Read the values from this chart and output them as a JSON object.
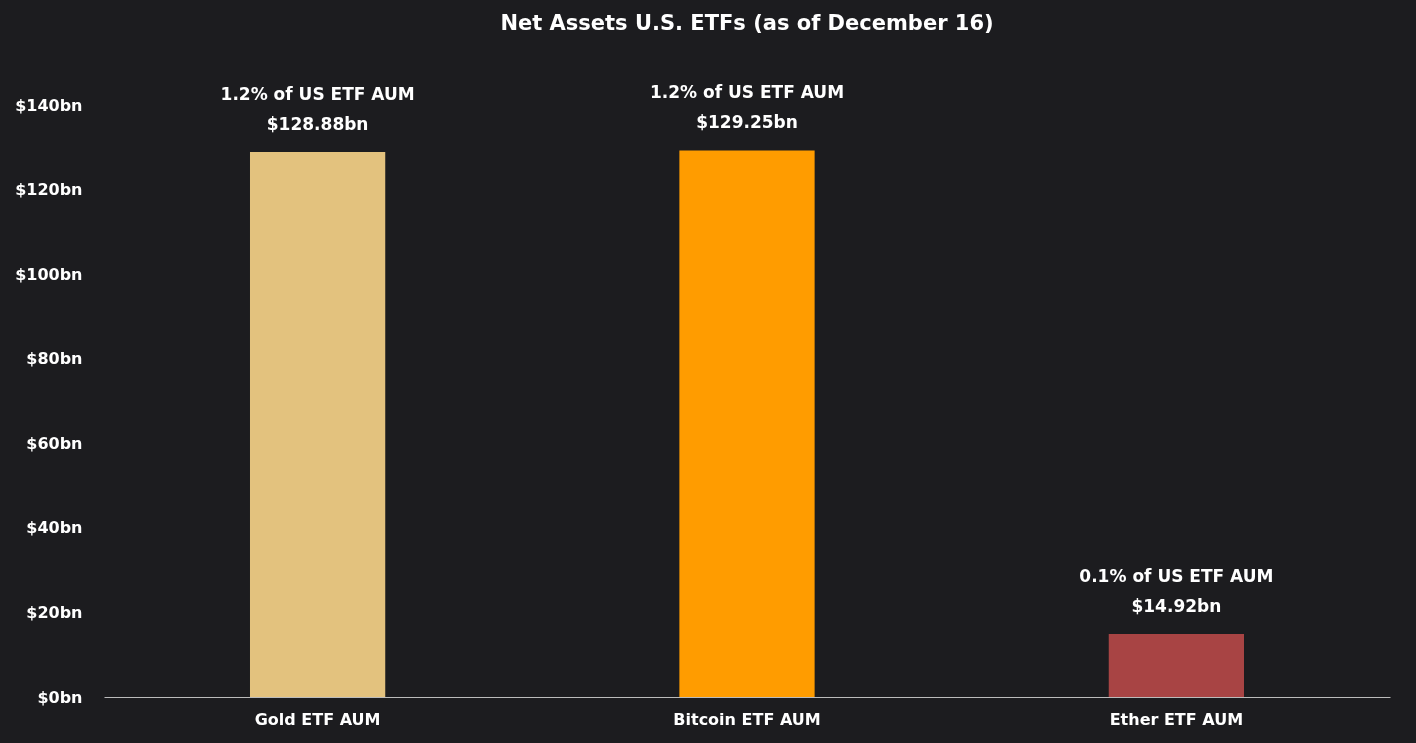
{
  "chart_data": {
    "type": "bar",
    "title": "Net Assets U.S. ETFs (as of December 16)",
    "categories": [
      "Gold ETF AUM",
      "Bitcoin ETF AUM",
      "Ether ETF AUM"
    ],
    "values": [
      128.88,
      129.25,
      14.92
    ],
    "colors": [
      "#e3c27e",
      "#ff9c00",
      "#a84444"
    ],
    "value_labels": [
      "$128.88bn",
      "$129.25bn",
      "$14.92bn"
    ],
    "annotations": [
      {
        "text": "1.2% of US ETF AUM",
        "x": "Gold ETF AUM",
        "y": 128.88
      },
      {
        "text": "1.2% of US ETF AUM",
        "x": "Bitcoin ETF AUM",
        "y": 129.25
      },
      {
        "text": "0.1% of US ETF AUM",
        "x": "Ether ETF AUM",
        "y": 14.92
      }
    ],
    "ylim": [
      0,
      140
    ],
    "yticks": [
      {
        "value": 0,
        "label": "$0bn"
      },
      {
        "value": 20,
        "label": "$20bn"
      },
      {
        "value": 40,
        "label": "$40bn"
      },
      {
        "value": 60,
        "label": "$60bn"
      },
      {
        "value": 80,
        "label": "$80bn"
      },
      {
        "value": 100,
        "label": "$100bn"
      },
      {
        "value": 120,
        "label": "$120bn"
      },
      {
        "value": 140,
        "label": "$140bn"
      }
    ],
    "grid": false
  }
}
